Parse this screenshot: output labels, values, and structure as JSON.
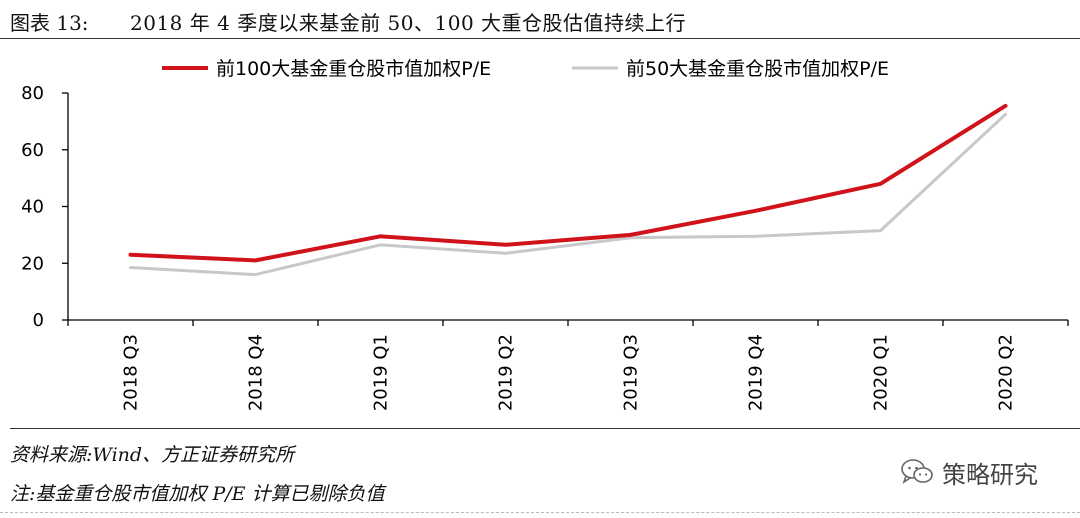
{
  "header": {
    "figure_label": "图表 13:",
    "title": "2018 年 4 季度以来基金前 50、100 大重仓股估值持续上行"
  },
  "chart_data": {
    "type": "line",
    "categories": [
      "2018 Q3",
      "2018 Q4",
      "2019 Q1",
      "2019 Q2",
      "2019 Q3",
      "2019 Q4",
      "2020 Q1",
      "2020 Q2"
    ],
    "series": [
      {
        "name": "前100大基金重仓股市值加权P/E",
        "color": "#d0121b",
        "values": [
          23,
          21,
          29.5,
          26.5,
          30,
          38.5,
          48,
          75.5
        ]
      },
      {
        "name": "前50大基金重仓股市值加权P/E",
        "color": "#c8c8c8",
        "values": [
          18.5,
          16,
          26.5,
          23.5,
          29,
          29.5,
          31.5,
          72.5
        ]
      }
    ],
    "ylim": [
      0,
      80
    ],
    "yticks": [
      0,
      20,
      40,
      60,
      80
    ],
    "grid": false,
    "legend_position": "top"
  },
  "footer": {
    "source": "资料来源:Wind、方正证券研究所",
    "note": "注:基金重仓股市值加权 P/E 计算已剔除负值",
    "watermark": "策略研究",
    "watermark_icon": "wechat-icon"
  }
}
